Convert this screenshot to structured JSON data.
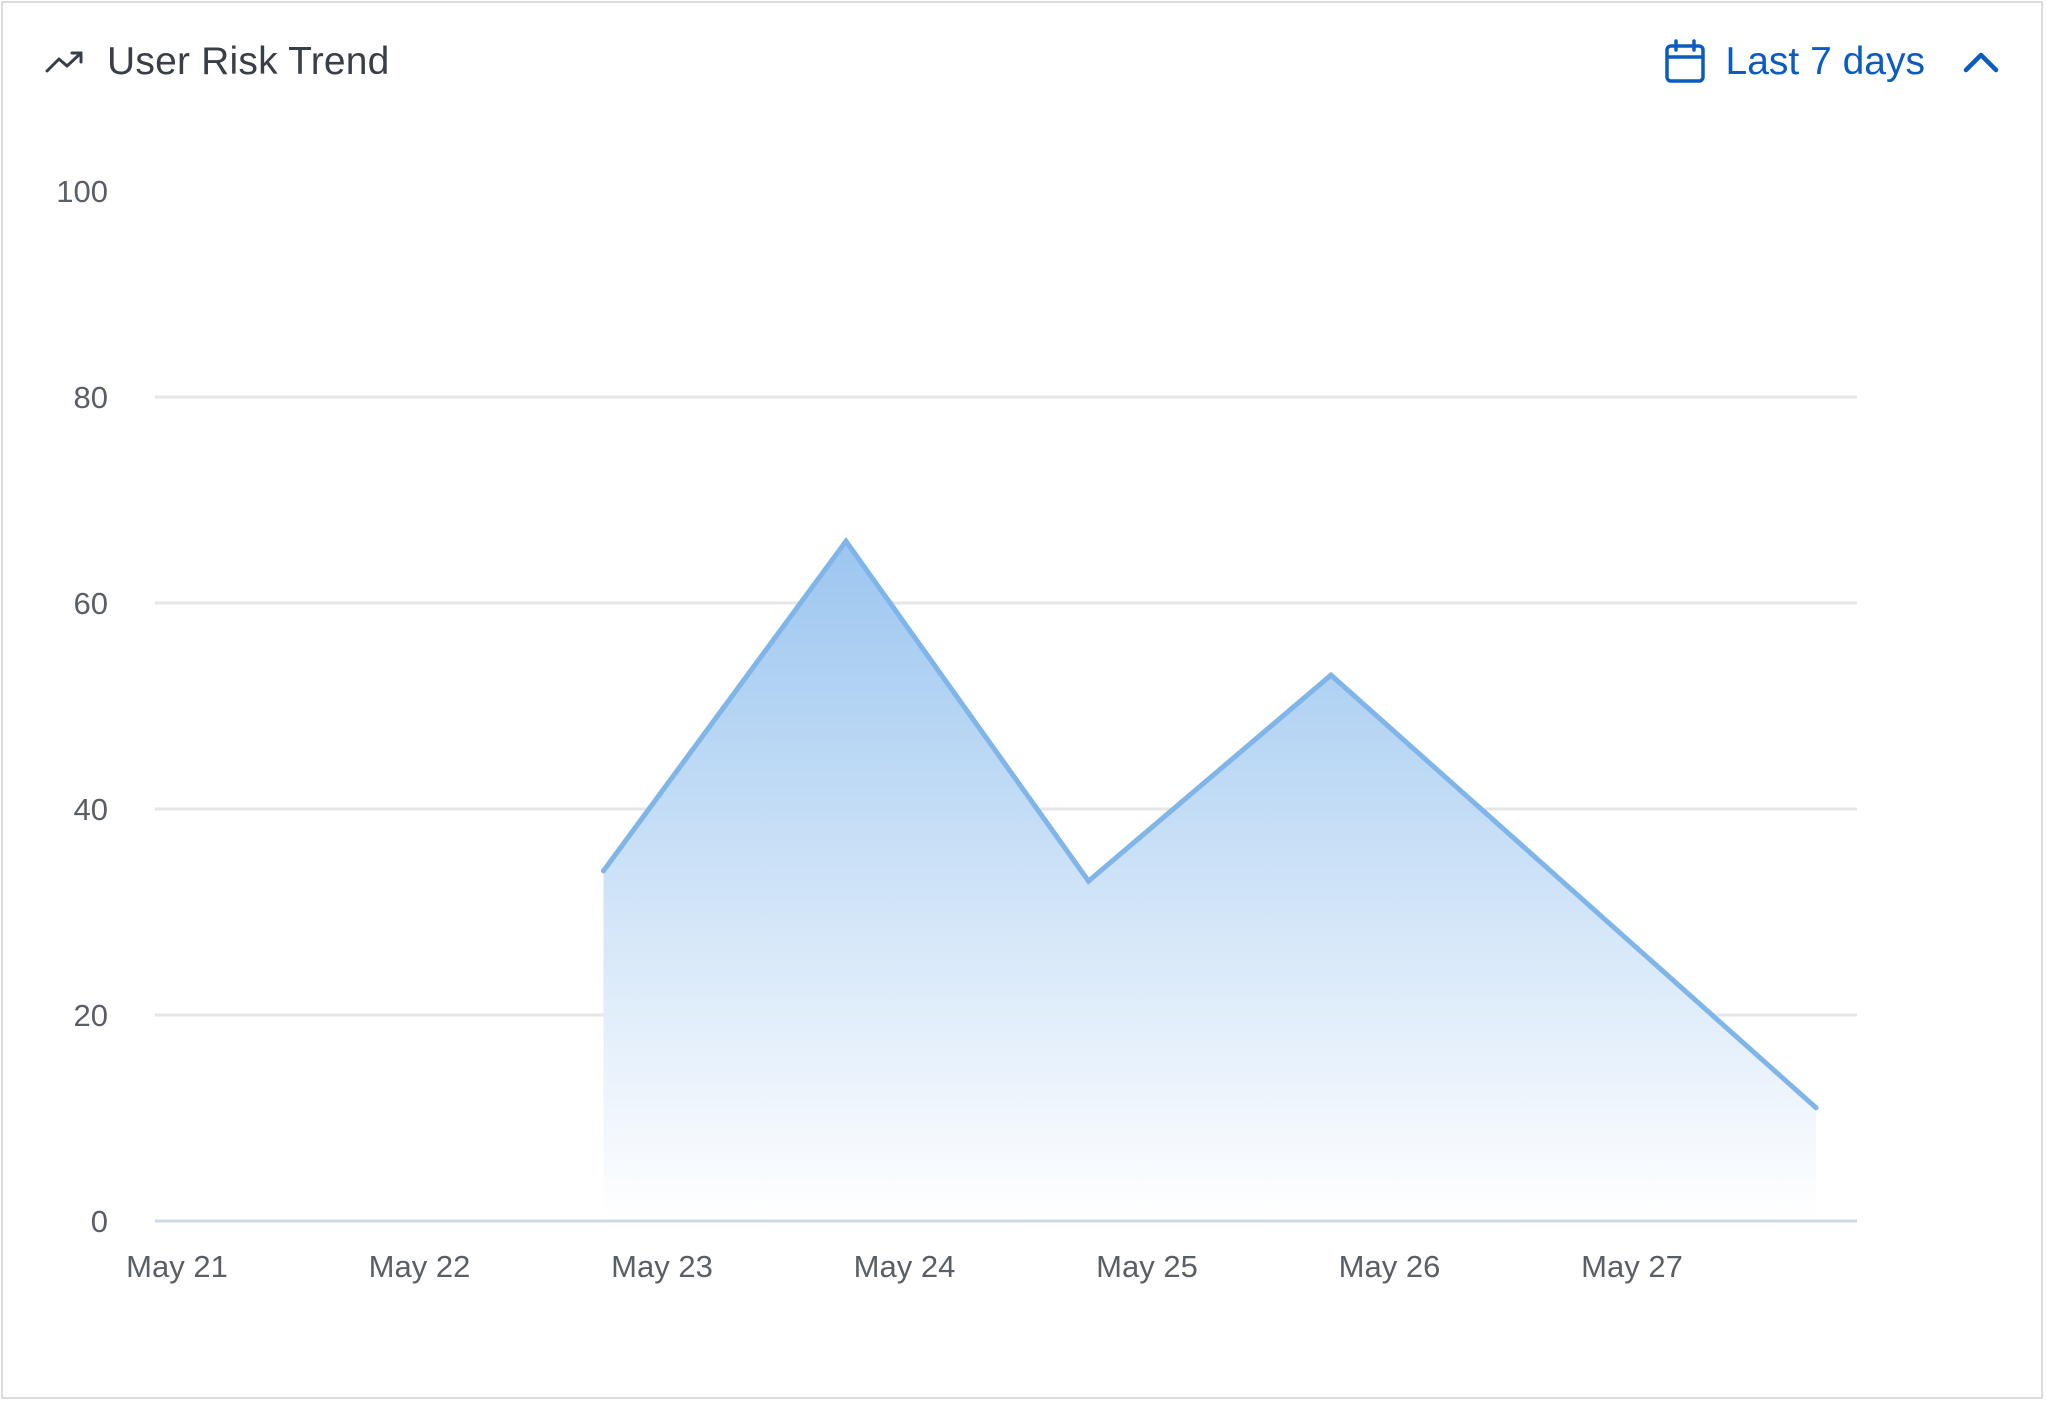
{
  "header": {
    "title": "User Risk Trend",
    "title_icon": "trending-up-icon",
    "range_icon": "calendar-icon",
    "range_label": "Last 7 days",
    "range_chevron_icon": "chevron-up-icon"
  },
  "colors": {
    "accent": "#0b5cc2",
    "line": "#7fb5e9",
    "fill_top": "#9cc6f0",
    "fill_bottom": "#ffffff",
    "grid": "#e6e6e6",
    "axis": "#cfd8e8"
  },
  "chart_data": {
    "type": "area",
    "x_ticks": [
      "May 21",
      "May 22",
      "May 23",
      "May 24",
      "May 25",
      "May 26",
      "May 27"
    ],
    "y_ticks": [
      0,
      20,
      40,
      60,
      80,
      100
    ],
    "ylim": [
      0,
      100
    ],
    "grid": true,
    "series": [
      {
        "points": [
          {
            "x": "May 22",
            "y": 34
          },
          {
            "x": "May 23",
            "y": 66
          },
          {
            "x": "May 24",
            "y": 33
          },
          {
            "x": "May 25",
            "y": 53
          },
          {
            "x": "May 27",
            "y": 11
          }
        ]
      }
    ]
  }
}
